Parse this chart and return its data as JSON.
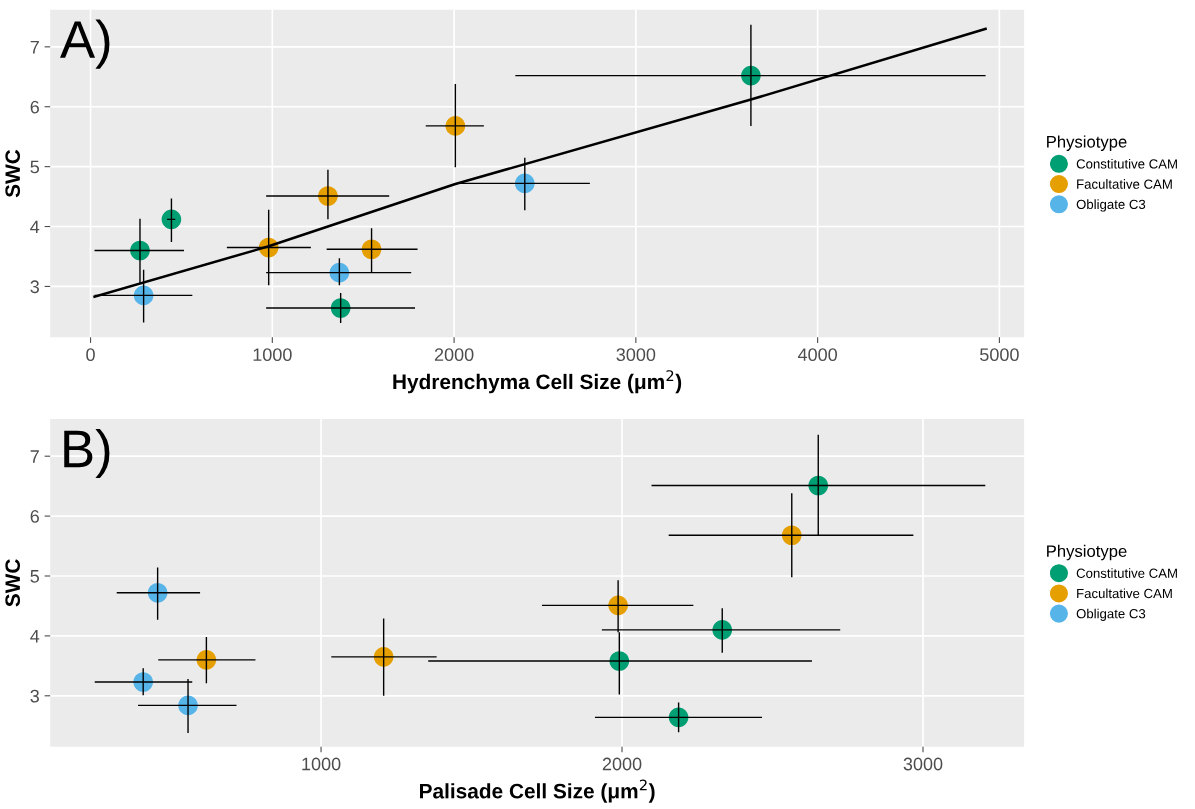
{
  "chart_data": [
    {
      "type": "scatter",
      "xlabel": "Hydrenchyma Cell Size (μm$^{2}$)",
      "ylabel": "SWC",
      "legend_title": "Physiotype",
      "legend": "right",
      "grid": true,
      "marker": "circle",
      "annotations": [
        "A)"
      ],
      "xlim": [
        -222,
        5136
      ],
      "ylim": [
        2.15,
        7.62
      ],
      "xticks": [
        0,
        1000,
        2000,
        3000,
        4000,
        5000
      ],
      "yticks": [
        3,
        4,
        5,
        6,
        7
      ],
      "series": [
        {
          "name": "Constitutive CAM",
          "color": "#009e73",
          "x": [
            272,
            445,
            1376,
            3633
          ],
          "values": [
            3.6,
            4.12,
            2.64,
            6.52
          ],
          "errors": [
            [
              3.05,
              4.13
            ],
            [
              3.74,
              4.47
            ],
            [
              2.39,
              2.89
            ],
            [
              5.68,
              7.37
            ]
          ],
          "xerrors": [
            [
              22,
              514
            ],
            [
              421,
              466
            ],
            [
              966,
              1785
            ],
            [
              2337,
              4924
            ]
          ]
        },
        {
          "name": "Facultative CAM",
          "color": "#e69f00",
          "x": [
            980,
            1306,
            1546,
            2007
          ],
          "values": [
            3.65,
            4.51,
            3.62,
            5.68
          ],
          "errors": [
            [
              3.02,
              4.28
            ],
            [
              4.12,
              4.95
            ],
            [
              3.23,
              3.97
            ],
            [
              4.99,
              6.38
            ]
          ],
          "xerrors": [
            [
              750,
              1212
            ],
            [
              966,
              1643
            ],
            [
              1299,
              1799
            ],
            [
              1844,
              2164
            ]
          ]
        },
        {
          "name": "Obligate C3",
          "color": "#56b4e9",
          "x": [
            292,
            1369,
            2389
          ],
          "values": [
            2.85,
            3.23,
            4.72
          ],
          "errors": [
            [
              2.4,
              3.28
            ],
            [
              3.02,
              3.47
            ],
            [
              4.27,
              5.15
            ]
          ],
          "xerrors": [
            [
              22,
              560
            ],
            [
              966,
              1764
            ],
            [
              2029,
              2747
            ]
          ]
        },
        {
          "type": "line",
          "marker": "none",
          "color": "#000000",
          "x": [
            22,
            980,
            2007,
            3633,
            4924
          ],
          "values": [
            2.83,
            3.67,
            4.71,
            6.12,
            7.3
          ]
        }
      ]
    },
    {
      "type": "scatter",
      "xlabel": "Palisade Cell Size (μm$^{2}$)",
      "ylabel": "SWC",
      "legend_title": "Physiotype",
      "legend": "right",
      "grid": true,
      "marker": "circle",
      "annotations": [
        "B)"
      ],
      "xlim": [
        100,
        3336
      ],
      "ylim": [
        2.15,
        7.62
      ],
      "xticks": [
        1000,
        2000,
        3000
      ],
      "yticks": [
        3,
        4,
        5,
        6,
        7
      ],
      "series": [
        {
          "name": "Constitutive CAM",
          "color": "#009e73",
          "x": [
            2652,
            2333,
            1991,
            2188
          ],
          "values": [
            6.51,
            4.1,
            3.58,
            2.64
          ],
          "errors": [
            [
              5.68,
              7.36
            ],
            [
              3.72,
              4.46
            ],
            [
              3.02,
              4.06
            ],
            [
              2.39,
              2.89
            ]
          ],
          "xerrors": [
            [
              2098,
              3207
            ],
            [
              1933,
              2725
            ],
            [
              1356,
              2631
            ],
            [
              1910,
              2465
            ]
          ]
        },
        {
          "name": "Facultative CAM",
          "color": "#e69f00",
          "x": [
            2564,
            1987,
            619,
            1208
          ],
          "values": [
            5.68,
            4.51,
            3.6,
            3.65
          ],
          "errors": [
            [
              4.98,
              6.38
            ],
            [
              4.06,
              4.93
            ],
            [
              3.21,
              3.98
            ],
            [
              3.0,
              4.29
            ]
          ],
          "xerrors": [
            [
              2155,
              2968
            ],
            [
              1734,
              2237
            ],
            [
              459,
              782
            ],
            [
              1034,
              1384
            ]
          ]
        },
        {
          "name": "Obligate C3",
          "color": "#56b4e9",
          "x": [
            457,
            409,
            558
          ],
          "values": [
            4.72,
            3.23,
            2.84
          ],
          "errors": [
            [
              4.27,
              5.14
            ],
            [
              3.01,
              3.46
            ],
            [
              2.38,
              3.28
            ]
          ],
          "xerrors": [
            [
              321,
              598
            ],
            [
              248,
              572
            ],
            [
              392,
              719
            ]
          ]
        }
      ]
    }
  ]
}
